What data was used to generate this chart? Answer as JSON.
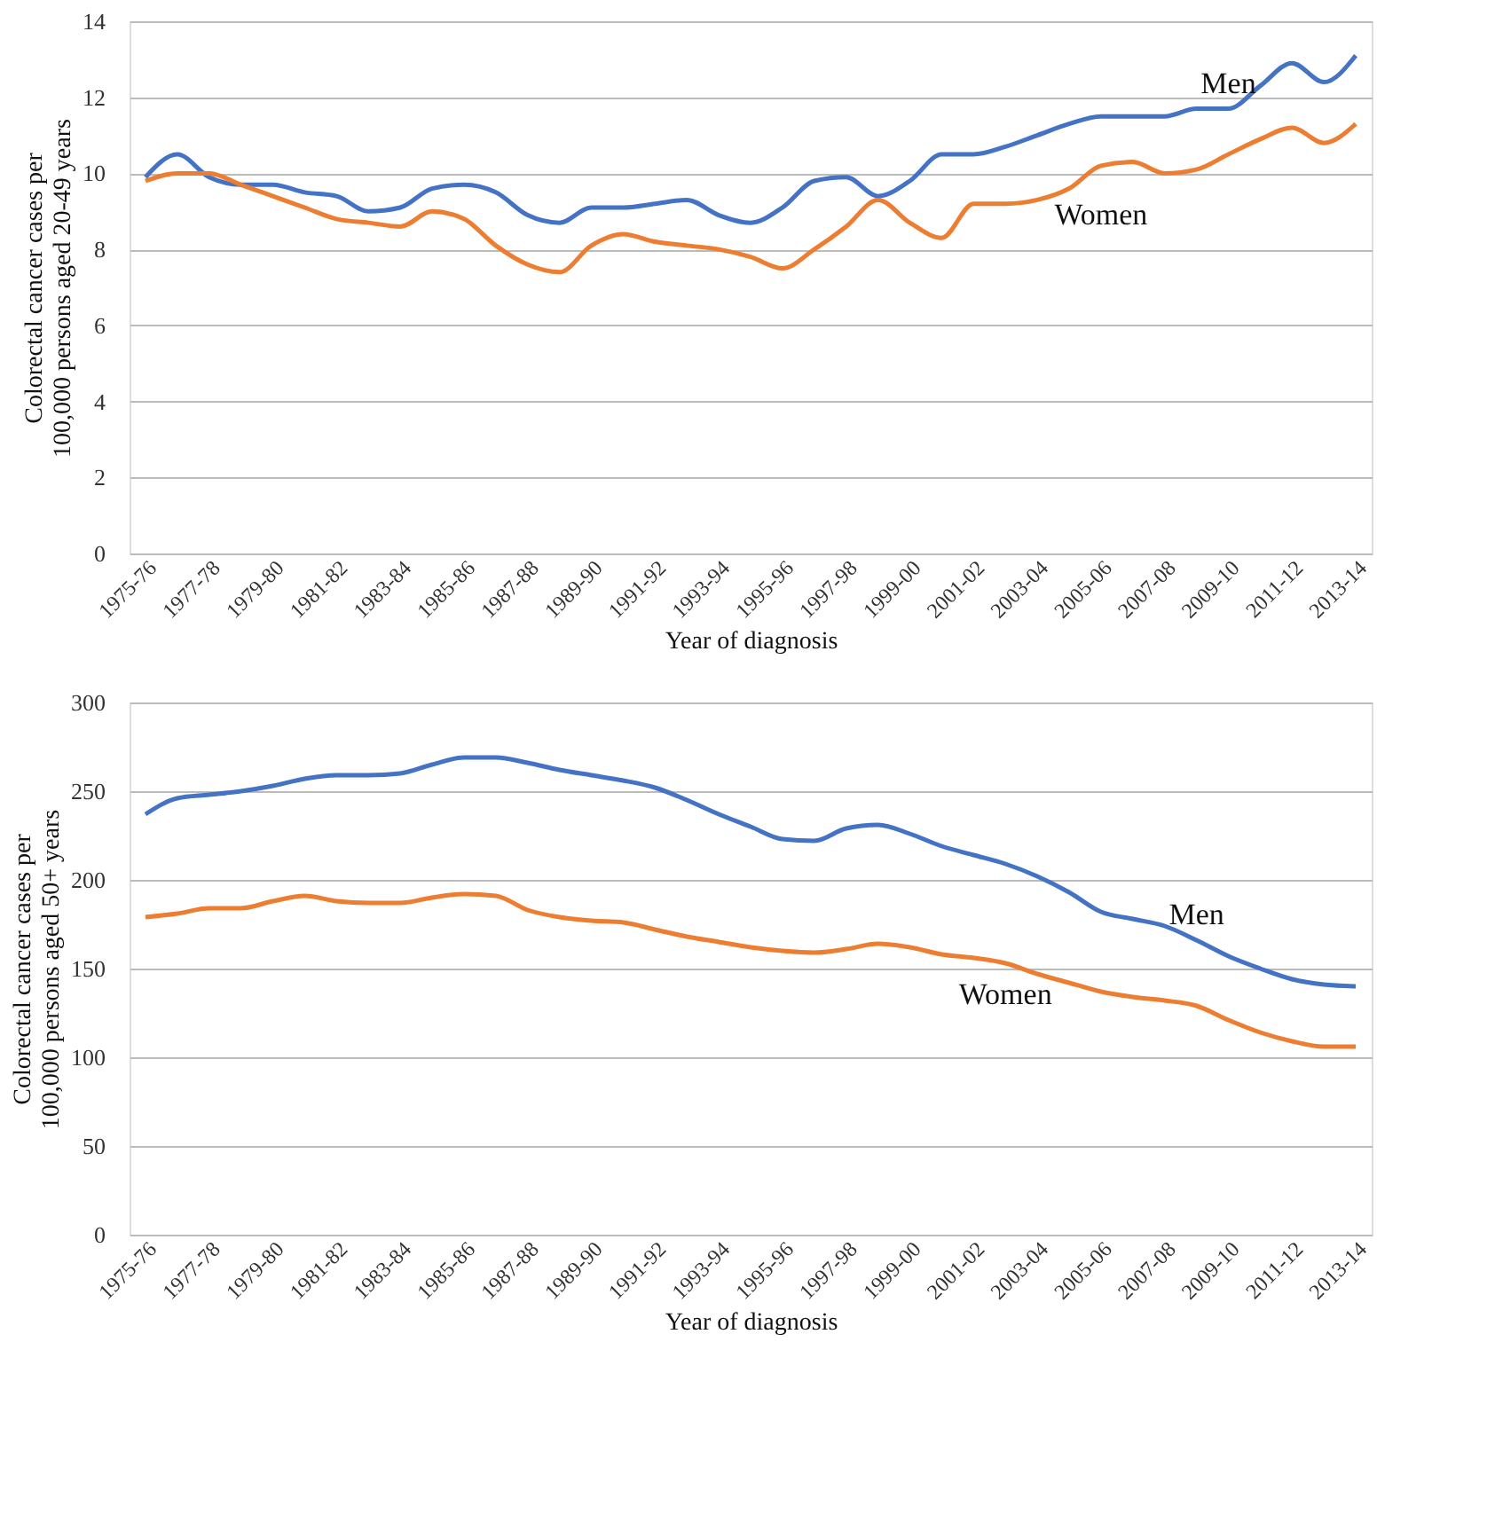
{
  "chart_data": [
    {
      "type": "line",
      "ylabel": "Colorectal cancer cases per 100,000 persons aged 20-49 years",
      "xlabel": "Year of diagnosis",
      "categories": [
        "1975-76",
        null,
        "1977-78",
        null,
        "1979-80",
        null,
        "1981-82",
        null,
        "1983-84",
        null,
        "1985-86",
        null,
        "1987-88",
        null,
        "1989-90",
        null,
        "1991-92",
        null,
        "1993-94",
        null,
        "1995-96",
        null,
        "1997-98",
        null,
        "1999-00",
        null,
        "2001-02",
        null,
        "2003-04",
        null,
        "2005-06",
        null,
        "2007-08",
        null,
        "2009-10",
        null,
        "2011-12",
        null,
        "2013-14"
      ],
      "series": [
        {
          "name": "Men",
          "color": "#4472c4",
          "values": [
            9.9,
            10.5,
            9.9,
            9.7,
            9.7,
            9.5,
            9.4,
            9.0,
            9.1,
            9.6,
            9.7,
            9.5,
            8.9,
            8.7,
            9.1,
            9.1,
            9.2,
            9.3,
            8.9,
            8.7,
            9.1,
            9.8,
            9.9,
            9.4,
            9.8,
            10.5,
            10.5,
            10.7,
            11.0,
            11.3,
            11.5,
            11.5,
            11.5,
            11.7,
            11.7,
            12.3,
            12.9,
            12.4,
            13.1
          ]
        },
        {
          "name": "Women",
          "color": "#ed7d31",
          "values": [
            9.8,
            10.0,
            10.0,
            9.7,
            9.4,
            9.1,
            8.8,
            8.7,
            8.6,
            9.0,
            8.8,
            8.1,
            7.6,
            7.4,
            8.1,
            8.4,
            8.2,
            8.1,
            8.0,
            7.8,
            7.5,
            8.0,
            8.6,
            9.3,
            8.7,
            8.3,
            9.2,
            9.2,
            9.3,
            9.6,
            10.2,
            10.3,
            10.0,
            10.1,
            10.5,
            10.9,
            11.2,
            10.8,
            11.3
          ]
        }
      ],
      "ylim": [
        0,
        14
      ],
      "yticks": [
        0,
        2,
        4,
        6,
        8,
        10,
        12,
        14
      ],
      "grid": "y",
      "marker": "none",
      "line_style": "solid"
    },
    {
      "type": "line",
      "ylabel": "Colorectal cancer cases per 100,000 persons aged 50+ years",
      "xlabel": "Year of diagnosis",
      "categories": [
        "1975-76",
        null,
        "1977-78",
        null,
        "1979-80",
        null,
        "1981-82",
        null,
        "1983-84",
        null,
        "1985-86",
        null,
        "1987-88",
        null,
        "1989-90",
        null,
        "1991-92",
        null,
        "1993-94",
        null,
        "1995-96",
        null,
        "1997-98",
        null,
        "1999-00",
        null,
        "2001-02",
        null,
        "2003-04",
        null,
        "2005-06",
        null,
        "2007-08",
        null,
        "2009-10",
        null,
        "2011-12",
        null,
        "2013-14"
      ],
      "series": [
        {
          "name": "Men",
          "color": "#4472c4",
          "values": [
            237,
            246,
            248,
            250,
            253,
            257,
            259,
            259,
            260,
            265,
            269,
            269,
            266,
            262,
            259,
            256,
            252,
            245,
            237,
            230,
            223,
            222,
            229,
            231,
            226,
            219,
            214,
            209,
            202,
            193,
            182,
            178,
            174,
            166,
            157,
            150,
            144,
            141,
            140
          ]
        },
        {
          "name": "Women",
          "color": "#ed7d31",
          "values": [
            179,
            181,
            184,
            184,
            188,
            191,
            188,
            187,
            187,
            190,
            192,
            191,
            183,
            179,
            177,
            176,
            172,
            168,
            165,
            162,
            160,
            159,
            161,
            164,
            162,
            158,
            156,
            153,
            147,
            142,
            137,
            134,
            132,
            129,
            121,
            114,
            109,
            106,
            106
          ]
        }
      ],
      "ylim": [
        0,
        300
      ],
      "yticks": [
        0,
        50,
        100,
        150,
        200,
        250,
        300
      ],
      "grid": "y",
      "marker": "none",
      "line_style": "solid"
    }
  ]
}
